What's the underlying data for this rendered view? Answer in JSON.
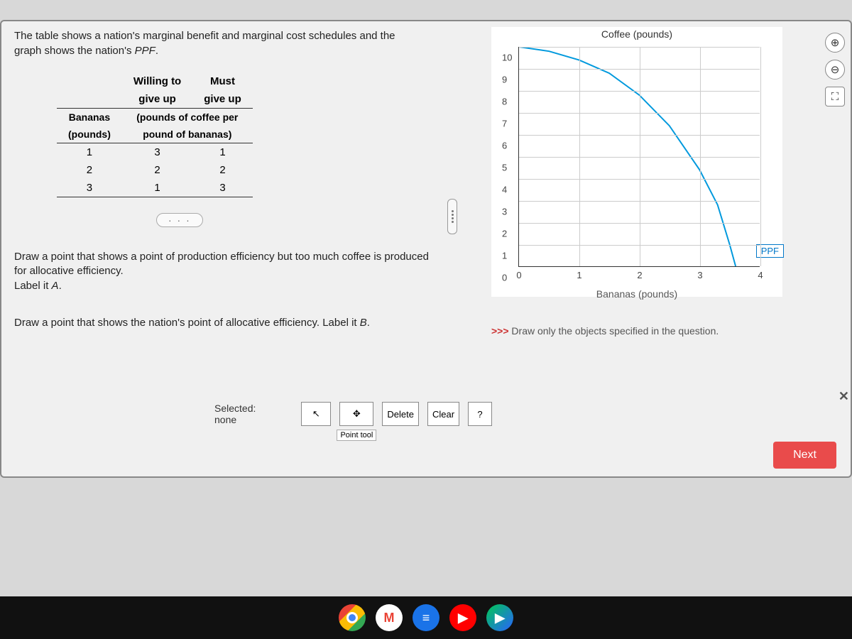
{
  "intro": {
    "line1": "The table shows a nation's marginal benefit and marginal cost schedules and the",
    "line2_a": "graph shows the nation's ",
    "line2_b": "PPF",
    "line2_c": "."
  },
  "table": {
    "col0_a": "Bananas",
    "col0_b": "(pounds)",
    "col1_a": "Willing to",
    "col1_b": "give up",
    "col2_a": "Must",
    "col2_b": "give up",
    "sub": "(pounds of coffee per",
    "sub2": "pound of bananas)",
    "rows": [
      {
        "b": "1",
        "w": "3",
        "m": "1"
      },
      {
        "b": "2",
        "w": "2",
        "m": "2"
      },
      {
        "b": "3",
        "w": "1",
        "m": "3"
      }
    ]
  },
  "more_btn": "· · ·",
  "instr1_a": "Draw a point that shows a point of production efficiency but too much coffee is produced for allocative efficiency.",
  "instr1_b": "Label it ",
  "instr1_c": "A",
  "instr1_d": ".",
  "instr2_a": "Draw a point that shows the nation's point of allocative efficiency. Label it ",
  "instr2_b": "B",
  "instr2_c": ".",
  "chart": {
    "title": "Coffee (pounds)",
    "xlabel": "Bananas (pounds)",
    "xlim": [
      0,
      4
    ],
    "ylim": [
      0,
      10
    ],
    "x_ticks": [
      0,
      1,
      2,
      3,
      4
    ],
    "y_ticks": [
      0,
      1,
      2,
      3,
      4,
      5,
      6,
      7,
      8,
      9,
      10
    ],
    "curve_color": "#0099dd",
    "grid_color": "#cccccc",
    "ppf_label": "PPF",
    "ppf_points": [
      [
        0,
        10
      ],
      [
        0.5,
        9.8
      ],
      [
        1,
        9.4
      ],
      [
        1.5,
        8.8
      ],
      [
        2,
        7.8
      ],
      [
        2.5,
        6.4
      ],
      [
        3,
        4.4
      ],
      [
        3.3,
        2.8
      ],
      [
        3.5,
        1.0
      ],
      [
        3.6,
        0
      ]
    ]
  },
  "hint": {
    "arrows": ">>>",
    "text": " Draw only the objects specified in the question."
  },
  "toolbar": {
    "selected_label": "Selected:",
    "selected_value": "none",
    "select_tool": "↖",
    "point_tool_caption": "Point tool",
    "delete": "Delete",
    "clear": "Clear",
    "help": "?"
  },
  "zoom": {
    "in": "⊕",
    "out": "⊖",
    "full": "⛶"
  },
  "next": "Next",
  "close": "✕",
  "taskbar": {
    "chrome_color": "#ffffff",
    "gmail_bg": "#ffffff",
    "icons": [
      {
        "name": "chrome",
        "bg": "#ffffff",
        "txt": "◉"
      },
      {
        "name": "gmail",
        "bg": "#ffffff",
        "txt": "M"
      },
      {
        "name": "docs",
        "bg": "#1a73e8",
        "txt": "≡"
      },
      {
        "name": "youtube",
        "bg": "#ff0000",
        "txt": "▶"
      },
      {
        "name": "play",
        "bg": "#ffffff",
        "txt": "▶"
      }
    ]
  }
}
